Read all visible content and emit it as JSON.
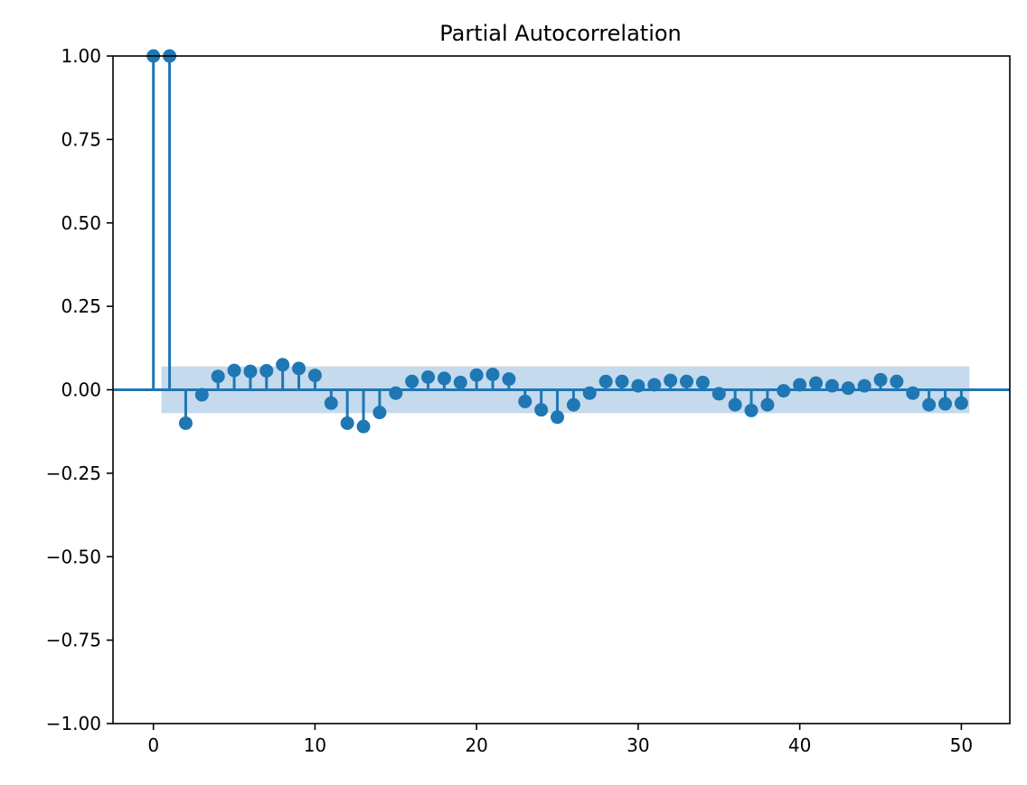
{
  "chart_data": {
    "type": "scatter",
    "subtype": "stem",
    "title": "Partial Autocorrelation",
    "xlabel": "",
    "ylabel": "",
    "xlim": [
      -2.5,
      53
    ],
    "ylim": [
      -1.0,
      1.0
    ],
    "xticks": [
      0,
      10,
      20,
      30,
      40,
      50
    ],
    "xtick_labels": [
      "0",
      "10",
      "20",
      "30",
      "40",
      "50"
    ],
    "yticks": [
      1.0,
      0.75,
      0.5,
      0.25,
      0.0,
      -0.25,
      -0.5,
      -0.75,
      -1.0
    ],
    "ytick_labels": [
      "1.00",
      "0.75",
      "0.50",
      "0.25",
      "0.00",
      "−0.25",
      "−0.50",
      "−0.75",
      "−1.00"
    ],
    "grid": false,
    "legend": "none",
    "confidence_band": {
      "x_start": 0.5,
      "x_end": 50.5,
      "lower": -0.07,
      "upper": 0.07
    },
    "x": [
      0,
      1,
      2,
      3,
      4,
      5,
      6,
      7,
      8,
      9,
      10,
      11,
      12,
      13,
      14,
      15,
      16,
      17,
      18,
      19,
      20,
      21,
      22,
      23,
      24,
      25,
      26,
      27,
      28,
      29,
      30,
      31,
      32,
      33,
      34,
      35,
      36,
      37,
      38,
      39,
      40,
      41,
      42,
      43,
      44,
      45,
      46,
      47,
      48,
      49,
      50
    ],
    "values": [
      1.0,
      1.0,
      -0.1,
      -0.015,
      0.04,
      0.058,
      0.055,
      0.057,
      0.075,
      0.064,
      0.043,
      -0.04,
      -0.1,
      -0.11,
      -0.068,
      -0.01,
      0.025,
      0.038,
      0.034,
      0.022,
      0.044,
      0.046,
      0.032,
      -0.035,
      -0.06,
      -0.082,
      -0.045,
      -0.01,
      0.025,
      0.025,
      0.012,
      0.015,
      0.028,
      0.025,
      0.022,
      -0.012,
      -0.045,
      -0.062,
      -0.045,
      -0.003,
      0.015,
      0.02,
      0.012,
      0.005,
      0.012,
      0.03,
      0.025,
      -0.01,
      -0.045,
      -0.042,
      -0.04
    ]
  },
  "colors": {
    "series": "#1f77b4",
    "band": "#c5daec",
    "axes": "#000000",
    "background": "#ffffff"
  }
}
